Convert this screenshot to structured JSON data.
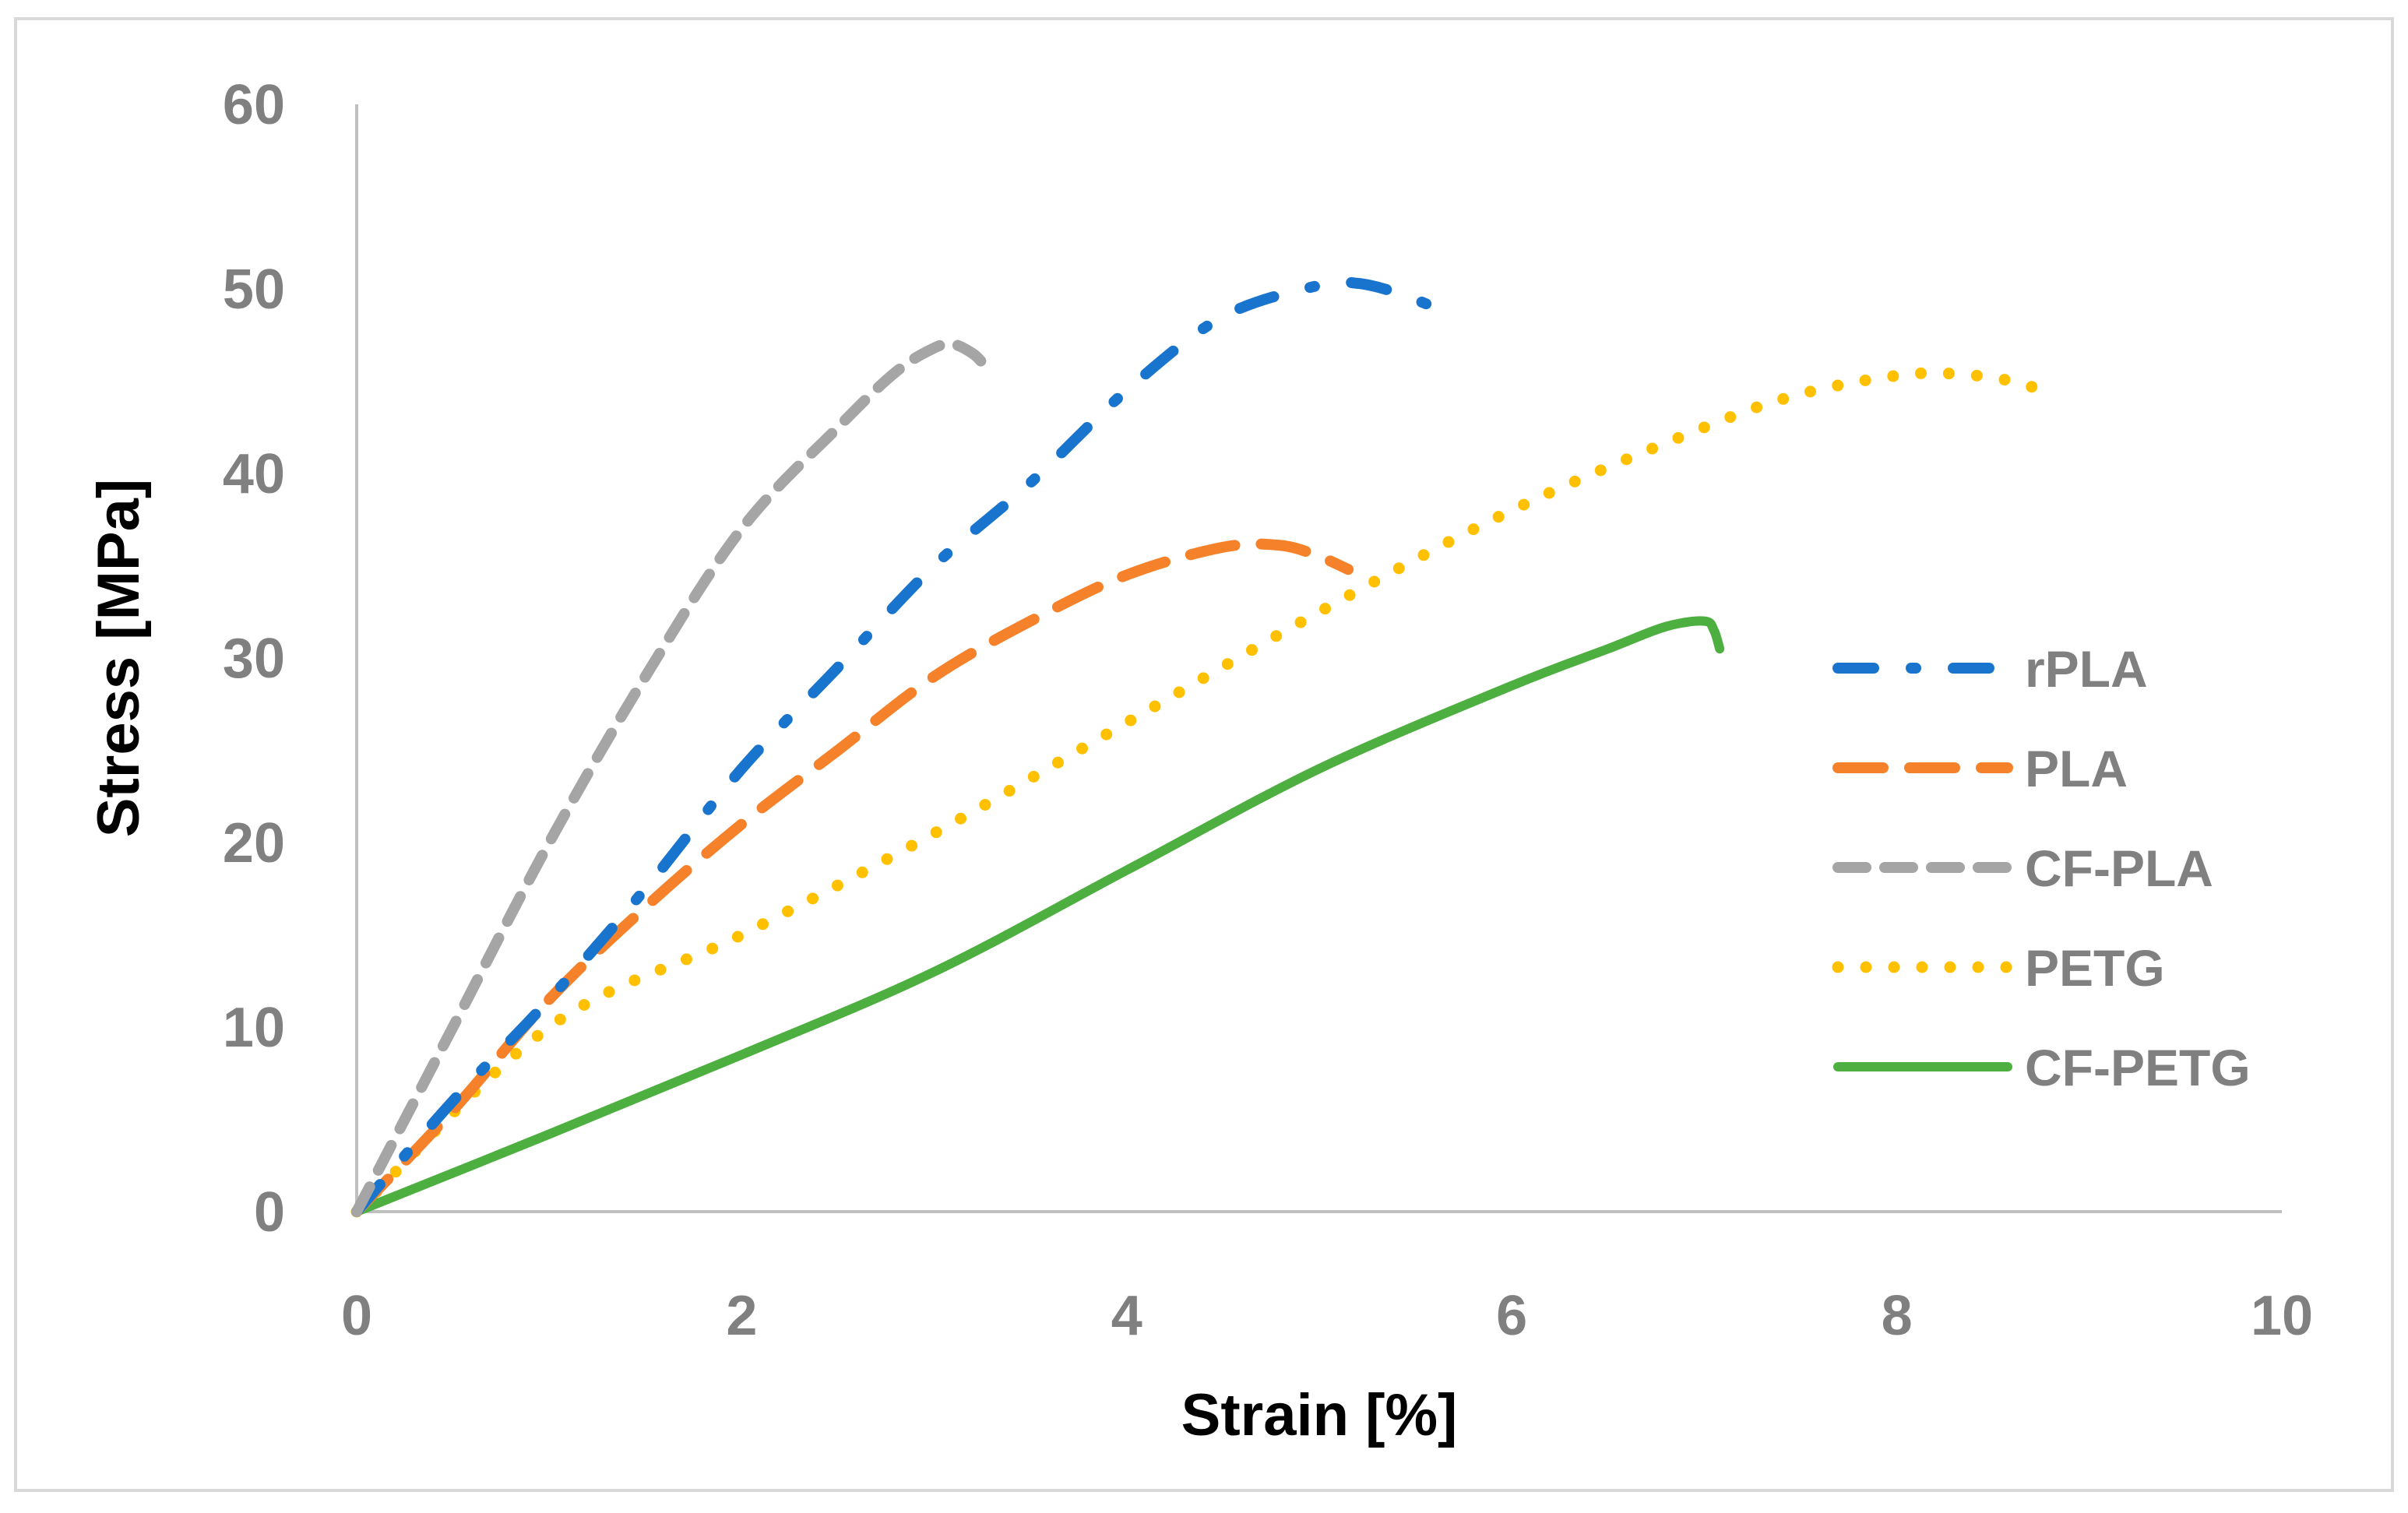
{
  "chart_data": {
    "type": "line",
    "title": "",
    "xlabel": "Strain [%]",
    "ylabel": "Stress [MPa]",
    "xlim": [
      0,
      10
    ],
    "ylim": [
      0,
      60
    ],
    "x_ticks": [
      "0",
      "2",
      "4",
      "6",
      "8",
      "10"
    ],
    "y_ticks": [
      "0",
      "10",
      "20",
      "30",
      "40",
      "50",
      "60"
    ],
    "grid": false,
    "legend_position": "right",
    "series": [
      {
        "name": "rPLA",
        "color": "#1874CD",
        "style": "dash-dot",
        "points": [
          [
            0,
            0
          ],
          [
            0.5,
            6
          ],
          [
            1,
            11.5
          ],
          [
            1.5,
            17.5
          ],
          [
            2,
            24
          ],
          [
            2.5,
            29.5
          ],
          [
            3,
            35
          ],
          [
            3.5,
            39.5
          ],
          [
            4,
            44.5
          ],
          [
            4.5,
            48.5
          ],
          [
            5,
            50.2
          ],
          [
            5.2,
            50.3
          ],
          [
            5.4,
            49.8
          ],
          [
            5.6,
            49
          ]
        ]
      },
      {
        "name": "PLA",
        "color": "#F5822A",
        "style": "long-dash",
        "points": [
          [
            0,
            0
          ],
          [
            0.5,
            5.5
          ],
          [
            1,
            11.5
          ],
          [
            1.5,
            16.5
          ],
          [
            2,
            21
          ],
          [
            2.5,
            25
          ],
          [
            3,
            29
          ],
          [
            3.5,
            32
          ],
          [
            4,
            34.5
          ],
          [
            4.5,
            36
          ],
          [
            4.8,
            36.1
          ],
          [
            5,
            35.5
          ],
          [
            5.15,
            34.8
          ]
        ]
      },
      {
        "name": "CF-PLA",
        "color": "#A5A5A5",
        "style": "dash",
        "points": [
          [
            0,
            0
          ],
          [
            0.25,
            5
          ],
          [
            0.5,
            10
          ],
          [
            1,
            20
          ],
          [
            1.5,
            29
          ],
          [
            2,
            37
          ],
          [
            2.5,
            42.5
          ],
          [
            2.8,
            45.5
          ],
          [
            3,
            46.8
          ],
          [
            3.1,
            47
          ],
          [
            3.2,
            46.5
          ],
          [
            3.25,
            46
          ]
        ]
      },
      {
        "name": "PETG",
        "color": "#FFC000",
        "style": "dot",
        "points": [
          [
            0,
            0
          ],
          [
            1,
            10
          ],
          [
            2,
            15
          ],
          [
            3,
            20.5
          ],
          [
            4,
            26.5
          ],
          [
            5,
            32.5
          ],
          [
            6,
            38
          ],
          [
            7,
            42.5
          ],
          [
            7.5,
            44.3
          ],
          [
            8,
            45.3
          ],
          [
            8.3,
            45.4
          ],
          [
            8.6,
            45
          ],
          [
            8.8,
            44.3
          ]
        ]
      },
      {
        "name": "CF-PETG",
        "color": "#4DAF3F",
        "style": "solid",
        "points": [
          [
            0,
            0
          ],
          [
            1,
            4.2
          ],
          [
            2,
            8.5
          ],
          [
            3,
            13
          ],
          [
            4,
            18.5
          ],
          [
            5,
            24
          ],
          [
            6,
            28.5
          ],
          [
            6.5,
            30.5
          ],
          [
            6.8,
            31.7
          ],
          [
            7,
            32
          ],
          [
            7.05,
            31.5
          ],
          [
            7.08,
            30.5
          ]
        ]
      }
    ]
  }
}
